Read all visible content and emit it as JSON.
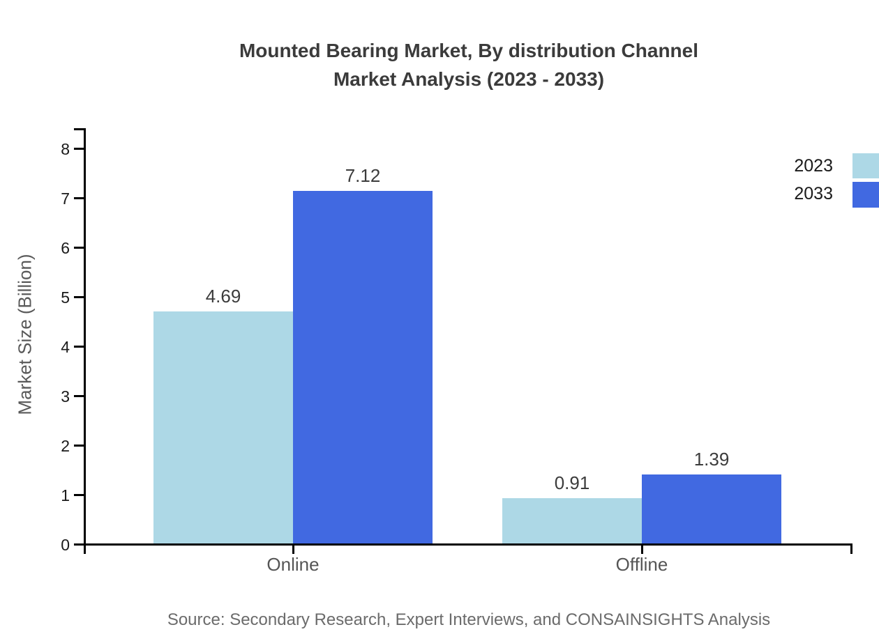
{
  "title": {
    "line1": "Mounted Bearing Market, By distribution Channel",
    "line2": "Market Analysis (2023 - 2033)"
  },
  "source_text": "Source: Secondary Research, Expert Interviews, and CONSAINSIGHTS Analysis",
  "chart_data": {
    "type": "bar",
    "title": "Mounted Bearing Market, By distribution Channel Market Analysis (2023 - 2033)",
    "categories": [
      "Online",
      "Offline"
    ],
    "series": [
      {
        "name": "2023",
        "color": "#ADD8E6",
        "values": [
          4.69,
          0.91
        ]
      },
      {
        "name": "2033",
        "color": "#4169E1",
        "values": [
          7.12,
          1.39
        ]
      }
    ],
    "xlabel": "",
    "ylabel": "Market Size (Billion)",
    "ylim": [
      0,
      8
    ],
    "yticks": [
      0,
      1,
      2,
      3,
      4,
      5,
      6,
      7,
      8
    ],
    "grid": false,
    "value_labels": true,
    "legend_position": "top-right"
  },
  "colors": {
    "axis": "#000000",
    "title_text": "#3b3b3b",
    "tick_text": "#1a1a1a",
    "category_text": "#555555",
    "ylabel_text": "#595959",
    "source_text": "#6b6b6b",
    "background": "#ffffff"
  }
}
